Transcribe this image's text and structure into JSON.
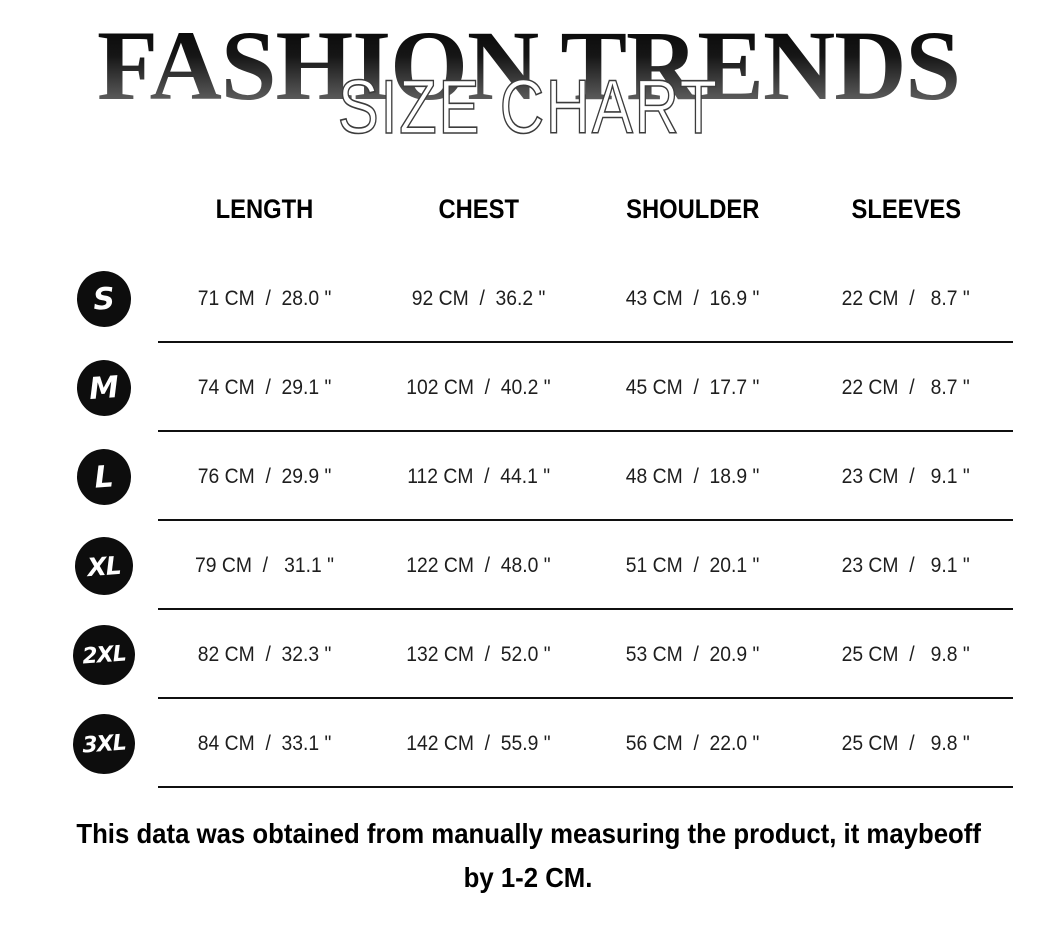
{
  "header": {
    "brand": "FASHION TRENDS",
    "subtitle": "SIZE CHART"
  },
  "table": {
    "columns": [
      "LENGTH",
      "CHEST",
      "SHOULDER",
      "SLEEVES"
    ],
    "rows": [
      {
        "size": "S",
        "cells": [
          "71 CM  /  28.0 \"",
          "92 CM  /  36.2 \"",
          "43 CM  /  16.9 \"",
          "22 CM  /   8.7 \""
        ]
      },
      {
        "size": "M",
        "cells": [
          "74 CM  /  29.1 \"",
          "102 CM  /  40.2 \"",
          "45 CM  /  17.7 \"",
          "22 CM  /   8.7 \""
        ]
      },
      {
        "size": "L",
        "cells": [
          "76 CM  /  29.9 \"",
          "112 CM  /  44.1 \"",
          "48 CM  /  18.9 \"",
          "23 CM  /   9.1 \""
        ]
      },
      {
        "size": "XL",
        "cells": [
          "79 CM  /   31.1 \"",
          "122 CM  /  48.0 \"",
          "51 CM  /  20.1 \"",
          "23 CM  /   9.1 \""
        ]
      },
      {
        "size": "2XL",
        "cells": [
          "82 CM  /  32.3 \"",
          "132 CM  /  52.0 \"",
          "53 CM  /  20.9 \"",
          "25 CM  /   9.8 \""
        ]
      },
      {
        "size": "3XL",
        "cells": [
          "84 CM  /  33.1 \"",
          "142 CM  /  55.9 \"",
          "56 CM  /  22.0 \"",
          "25 CM  /   9.8 \""
        ]
      }
    ]
  },
  "footer": {
    "line1": "This data was obtained from manually measuring the product, it maybeoff",
    "line2": "by 1-2 CM.",
    "colors": {
      "badge_bg": "#0d0d0d",
      "badge_text": "#ffffff",
      "rule": "#101010"
    }
  }
}
